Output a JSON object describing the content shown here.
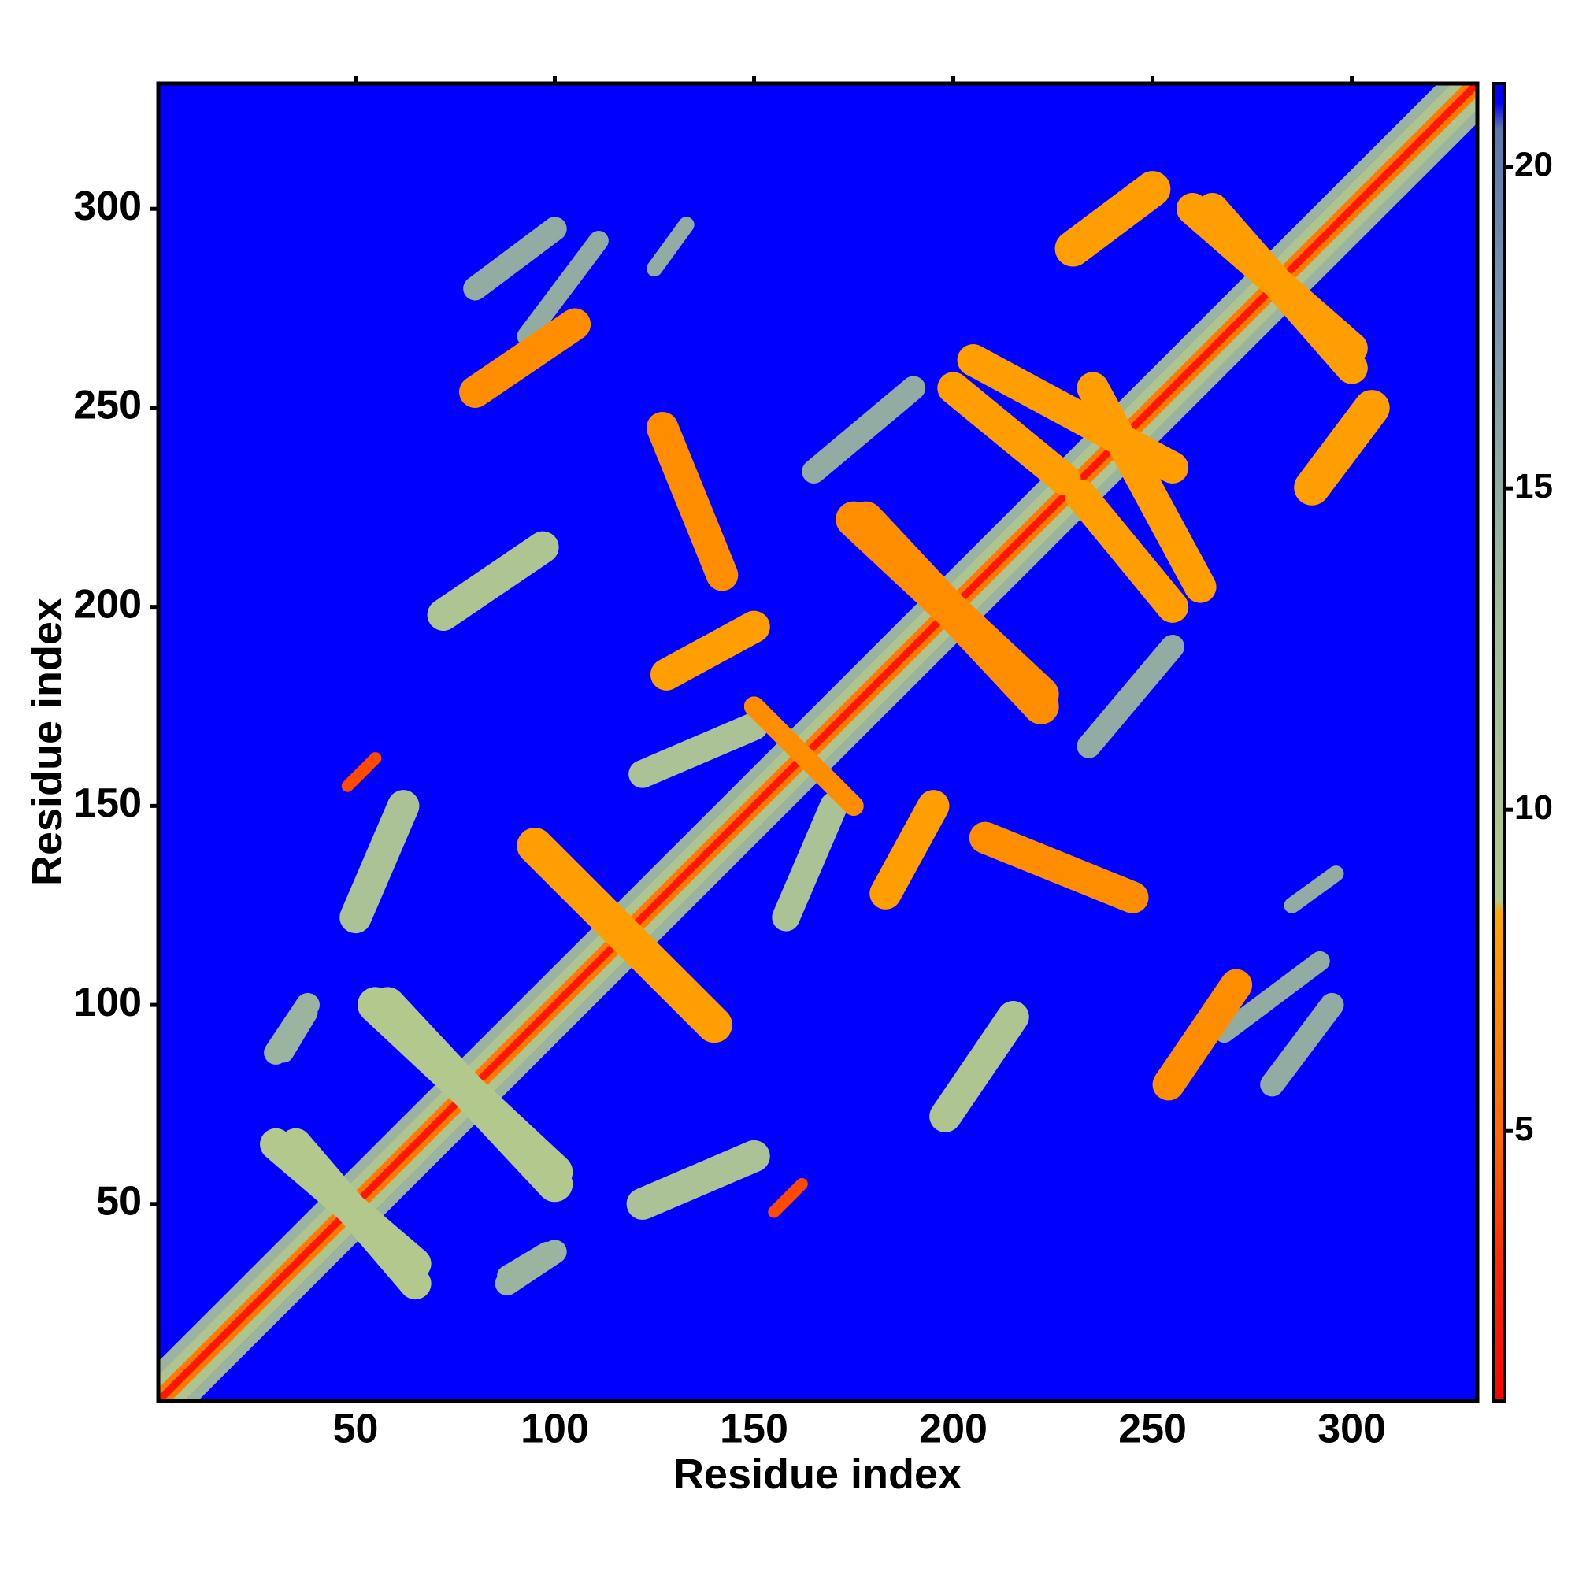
{
  "chart_data": {
    "type": "heatmap",
    "x_label": "Residue index",
    "y_label": "Residue index",
    "xlim": [
      0.5,
      331.5
    ],
    "ylim": [
      0.5,
      331.5
    ],
    "xticks": [
      50,
      100,
      150,
      200,
      250,
      300
    ],
    "yticks": [
      50,
      100,
      150,
      200,
      250,
      300
    ],
    "symmetric": true,
    "background_value": 21,
    "clim": [
      0.8,
      21.3
    ],
    "cticks": [
      5,
      10,
      15,
      20
    ],
    "colorscale": [
      [
        0.8,
        "#ff0000"
      ],
      [
        3,
        "#ff2a00"
      ],
      [
        5,
        "#ff6a00"
      ],
      [
        8.4,
        "#ffa500"
      ],
      [
        8.6,
        "#b3c98c"
      ],
      [
        13,
        "#a3bc9c"
      ],
      [
        18,
        "#7893b0"
      ],
      [
        20.6,
        "#5a78b0"
      ],
      [
        21,
        "#0000ff"
      ]
    ],
    "contacts": [
      {
        "x": [
          1,
          331
        ],
        "y": [
          1,
          331
        ],
        "width": 14,
        "value": 14
      },
      {
        "x": [
          1,
          331
        ],
        "y": [
          1,
          331
        ],
        "width": 9,
        "value": 10
      },
      {
        "x": [
          1,
          331
        ],
        "y": [
          1,
          331
        ],
        "width": 4.5,
        "value": 6
      },
      {
        "x": [
          1,
          331
        ],
        "y": [
          1,
          331
        ],
        "width": 1.8,
        "value": 2
      },
      {
        "x": [
          80,
          100
        ],
        "y": [
          280,
          295
        ],
        "width": 6,
        "value": 15
      },
      {
        "x": [
          125,
          133
        ],
        "y": [
          285,
          296
        ],
        "width": 4,
        "value": 15
      },
      {
        "x": [
          30,
          38
        ],
        "y": [
          88,
          100
        ],
        "width": 6,
        "value": 14
      },
      {
        "x": [
          88,
          98
        ],
        "y": [
          32,
          38
        ],
        "width": 5,
        "value": 14
      },
      {
        "x": [
          165,
          190
        ],
        "y": [
          234,
          255
        ],
        "width": 6,
        "value": 15
      },
      {
        "x": [
          93,
          111
        ],
        "y": [
          268,
          292
        ],
        "width": 5,
        "value": 15
      },
      {
        "x": [
          80,
          105
        ],
        "y": [
          254,
          271
        ],
        "width": 8,
        "value": 7
      },
      {
        "x": [
          72,
          97
        ],
        "y": [
          198,
          215
        ],
        "width": 8,
        "value": 10
      },
      {
        "x": [
          48,
          55
        ],
        "y": [
          155,
          162
        ],
        "width": 3,
        "value": 4
      },
      {
        "x": [
          50,
          62
        ],
        "y": [
          122,
          150
        ],
        "width": 8,
        "value": 11
      },
      {
        "x": [
          127,
          142
        ],
        "y": [
          245,
          208
        ],
        "width": 8,
        "value": 7
      },
      {
        "x": [
          128,
          150
        ],
        "y": [
          183,
          195
        ],
        "width": 8,
        "value": 8
      },
      {
        "x": [
          122,
          150
        ],
        "y": [
          158,
          170
        ],
        "width": 7,
        "value": 11
      },
      {
        "x": [
          200,
          228
        ],
        "y": [
          255,
          232
        ],
        "width": 8,
        "value": 8
      },
      {
        "x": [
          230,
          250
        ],
        "y": [
          290,
          305
        ],
        "width": 9,
        "value": 8
      },
      {
        "x": [
          175,
          222
        ],
        "y": [
          222,
          178
        ],
        "width": 9,
        "value": 7
      },
      {
        "x": [
          235,
          262
        ],
        "y": [
          255,
          205
        ],
        "width": 8,
        "value": 8
      },
      {
        "x": [
          95,
          140
        ],
        "y": [
          140,
          95
        ],
        "width": 9,
        "value": 8
      },
      {
        "x": [
          55,
          100
        ],
        "y": [
          100,
          58
        ],
        "width": 9,
        "value": 9
      },
      {
        "x": [
          30,
          65
        ],
        "y": [
          65,
          35
        ],
        "width": 8,
        "value": 9
      },
      {
        "x": [
          150,
          175
        ],
        "y": [
          175,
          150
        ],
        "width": 5,
        "value": 7
      },
      {
        "x": [
          260,
          300
        ],
        "y": [
          300,
          265
        ],
        "width": 8,
        "value": 8
      }
    ]
  }
}
